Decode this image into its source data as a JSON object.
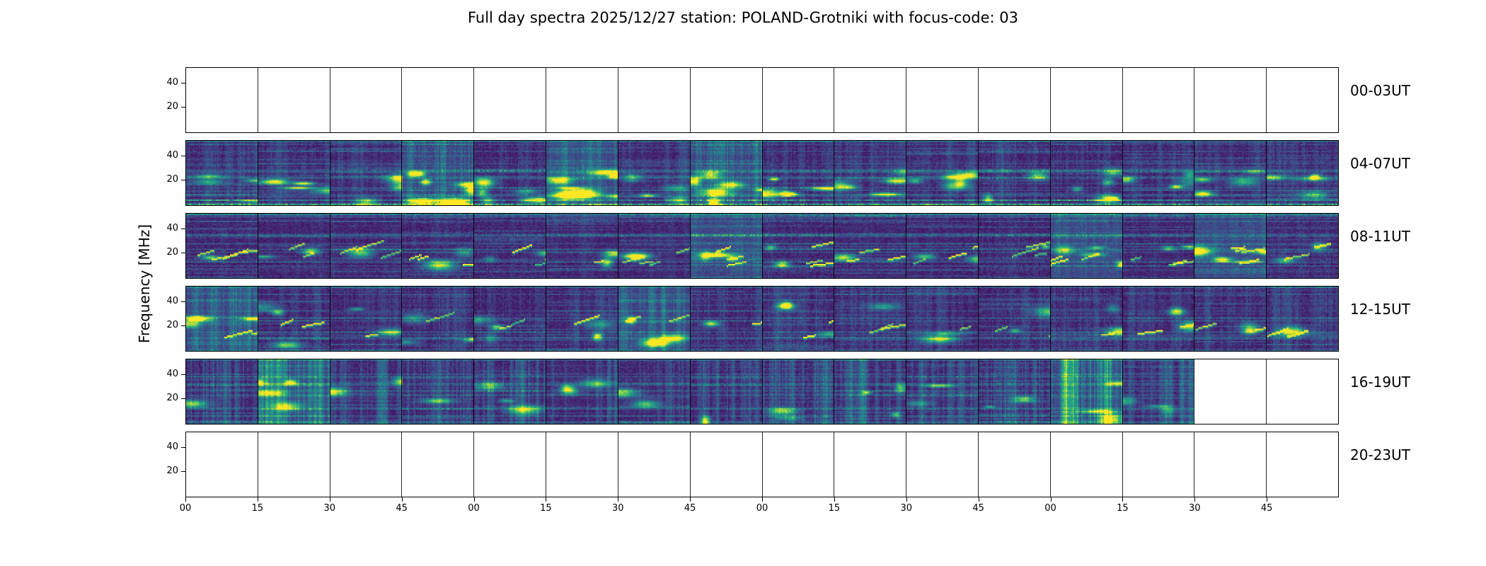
{
  "chart_data": {
    "type": "heatmap",
    "title": "Full day spectra 2025/12/27 station: POLAND-Grotniki with focus-code: 03",
    "ylabel": "Frequency [MHz]",
    "xlabel": "",
    "colormap": "viridis",
    "colormap_colors": [
      "#440154",
      "#414487",
      "#2a788e",
      "#22a884",
      "#7ad151",
      "#fde725"
    ],
    "empty_panel_color": "#ffffff",
    "freq_ticks": [
      "40",
      "20"
    ],
    "freq_axis_range_mhz": [
      10,
      55
    ],
    "x_ticks": [
      "00",
      "15",
      "30",
      "45",
      "00",
      "15",
      "30",
      "45",
      "00",
      "15",
      "30",
      "45",
      "00",
      "15",
      "30",
      "45"
    ],
    "segments_per_row": 16,
    "segment_minutes": 15,
    "rows": [
      {
        "label": "00-03UT",
        "has_data": false,
        "data_segments": 0,
        "style": "empty",
        "hot_segments": []
      },
      {
        "label": "04-07UT",
        "has_data": true,
        "data_segments": 16,
        "style": "blotchy",
        "hot_segments": [
          3,
          5,
          7
        ]
      },
      {
        "label": "08-11UT",
        "has_data": true,
        "data_segments": 16,
        "style": "diagonal",
        "hot_segments": [
          7,
          12,
          14
        ]
      },
      {
        "label": "12-15UT",
        "has_data": true,
        "data_segments": 16,
        "style": "mixed",
        "hot_segments": [
          0,
          6
        ]
      },
      {
        "label": "16-19UT",
        "has_data": true,
        "data_segments": 14,
        "style": "stripes",
        "hot_segments": [
          1,
          12
        ]
      },
      {
        "label": "20-23UT",
        "has_data": false,
        "data_segments": 0,
        "style": "empty",
        "hot_segments": []
      }
    ]
  }
}
